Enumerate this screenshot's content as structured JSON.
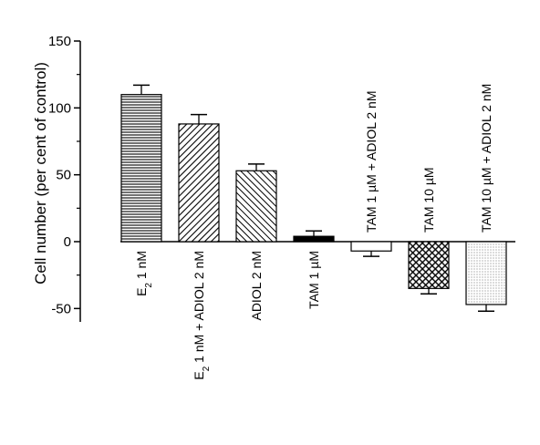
{
  "chart_data": {
    "type": "bar",
    "title": "",
    "xlabel": "",
    "ylabel": "Cell number (per cent of control)",
    "ylim": [
      -60,
      150
    ],
    "yticks": [
      -50,
      0,
      50,
      100,
      150
    ],
    "grid": false,
    "categories": [
      {
        "main": "E",
        "sub": "2",
        "rest": " 1 nM"
      },
      {
        "main": "E",
        "sub": "2",
        "rest": " 1 nM + ADIOL 2 nM"
      },
      {
        "main": "ADIOL 2 nM",
        "sub": "",
        "rest": ""
      },
      {
        "main": "TAM 1 µM",
        "sub": "",
        "rest": ""
      },
      {
        "main": "TAM 1 µM + ADIOL 2 nM",
        "sub": "",
        "rest": ""
      },
      {
        "main": "TAM 10 µM",
        "sub": "",
        "rest": ""
      },
      {
        "main": "TAM 10 µM + ADIOL 2 nM",
        "sub": "",
        "rest": ""
      }
    ],
    "values": [
      110,
      88,
      53,
      4,
      -7,
      -35,
      -47
    ],
    "errors": [
      7,
      7,
      5,
      4,
      4,
      4,
      5
    ],
    "patterns": [
      "horizontal-lines",
      "diagonal-lines",
      "diagonal-lines-reverse",
      "solid-black",
      "white",
      "crosshatch",
      "dotted"
    ]
  }
}
